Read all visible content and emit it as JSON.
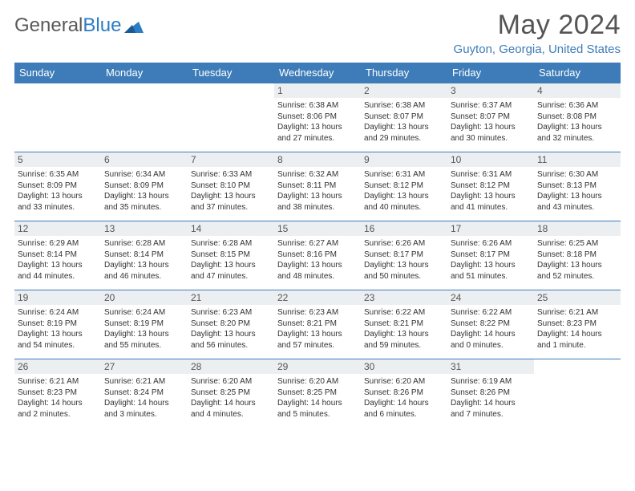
{
  "logo": {
    "text1": "General",
    "text2": "Blue",
    "accent_color": "#2b7dc4"
  },
  "title": "May 2024",
  "location": "Guyton, Georgia, United States",
  "colors": {
    "header_bg": "#3d7cb8",
    "header_text": "#ffffff",
    "daynum_bg": "#eceff1",
    "border": "#3d7cb8",
    "title_color": "#555555",
    "location_color": "#3d7cb8"
  },
  "weekdays": [
    "Sunday",
    "Monday",
    "Tuesday",
    "Wednesday",
    "Thursday",
    "Friday",
    "Saturday"
  ],
  "weeks": [
    [
      null,
      null,
      null,
      {
        "n": "1",
        "sr": "Sunrise: 6:38 AM",
        "ss": "Sunset: 8:06 PM",
        "dl": "Daylight: 13 hours and 27 minutes."
      },
      {
        "n": "2",
        "sr": "Sunrise: 6:38 AM",
        "ss": "Sunset: 8:07 PM",
        "dl": "Daylight: 13 hours and 29 minutes."
      },
      {
        "n": "3",
        "sr": "Sunrise: 6:37 AM",
        "ss": "Sunset: 8:07 PM",
        "dl": "Daylight: 13 hours and 30 minutes."
      },
      {
        "n": "4",
        "sr": "Sunrise: 6:36 AM",
        "ss": "Sunset: 8:08 PM",
        "dl": "Daylight: 13 hours and 32 minutes."
      }
    ],
    [
      {
        "n": "5",
        "sr": "Sunrise: 6:35 AM",
        "ss": "Sunset: 8:09 PM",
        "dl": "Daylight: 13 hours and 33 minutes."
      },
      {
        "n": "6",
        "sr": "Sunrise: 6:34 AM",
        "ss": "Sunset: 8:09 PM",
        "dl": "Daylight: 13 hours and 35 minutes."
      },
      {
        "n": "7",
        "sr": "Sunrise: 6:33 AM",
        "ss": "Sunset: 8:10 PM",
        "dl": "Daylight: 13 hours and 37 minutes."
      },
      {
        "n": "8",
        "sr": "Sunrise: 6:32 AM",
        "ss": "Sunset: 8:11 PM",
        "dl": "Daylight: 13 hours and 38 minutes."
      },
      {
        "n": "9",
        "sr": "Sunrise: 6:31 AM",
        "ss": "Sunset: 8:12 PM",
        "dl": "Daylight: 13 hours and 40 minutes."
      },
      {
        "n": "10",
        "sr": "Sunrise: 6:31 AM",
        "ss": "Sunset: 8:12 PM",
        "dl": "Daylight: 13 hours and 41 minutes."
      },
      {
        "n": "11",
        "sr": "Sunrise: 6:30 AM",
        "ss": "Sunset: 8:13 PM",
        "dl": "Daylight: 13 hours and 43 minutes."
      }
    ],
    [
      {
        "n": "12",
        "sr": "Sunrise: 6:29 AM",
        "ss": "Sunset: 8:14 PM",
        "dl": "Daylight: 13 hours and 44 minutes."
      },
      {
        "n": "13",
        "sr": "Sunrise: 6:28 AM",
        "ss": "Sunset: 8:14 PM",
        "dl": "Daylight: 13 hours and 46 minutes."
      },
      {
        "n": "14",
        "sr": "Sunrise: 6:28 AM",
        "ss": "Sunset: 8:15 PM",
        "dl": "Daylight: 13 hours and 47 minutes."
      },
      {
        "n": "15",
        "sr": "Sunrise: 6:27 AM",
        "ss": "Sunset: 8:16 PM",
        "dl": "Daylight: 13 hours and 48 minutes."
      },
      {
        "n": "16",
        "sr": "Sunrise: 6:26 AM",
        "ss": "Sunset: 8:17 PM",
        "dl": "Daylight: 13 hours and 50 minutes."
      },
      {
        "n": "17",
        "sr": "Sunrise: 6:26 AM",
        "ss": "Sunset: 8:17 PM",
        "dl": "Daylight: 13 hours and 51 minutes."
      },
      {
        "n": "18",
        "sr": "Sunrise: 6:25 AM",
        "ss": "Sunset: 8:18 PM",
        "dl": "Daylight: 13 hours and 52 minutes."
      }
    ],
    [
      {
        "n": "19",
        "sr": "Sunrise: 6:24 AM",
        "ss": "Sunset: 8:19 PM",
        "dl": "Daylight: 13 hours and 54 minutes."
      },
      {
        "n": "20",
        "sr": "Sunrise: 6:24 AM",
        "ss": "Sunset: 8:19 PM",
        "dl": "Daylight: 13 hours and 55 minutes."
      },
      {
        "n": "21",
        "sr": "Sunrise: 6:23 AM",
        "ss": "Sunset: 8:20 PM",
        "dl": "Daylight: 13 hours and 56 minutes."
      },
      {
        "n": "22",
        "sr": "Sunrise: 6:23 AM",
        "ss": "Sunset: 8:21 PM",
        "dl": "Daylight: 13 hours and 57 minutes."
      },
      {
        "n": "23",
        "sr": "Sunrise: 6:22 AM",
        "ss": "Sunset: 8:21 PM",
        "dl": "Daylight: 13 hours and 59 minutes."
      },
      {
        "n": "24",
        "sr": "Sunrise: 6:22 AM",
        "ss": "Sunset: 8:22 PM",
        "dl": "Daylight: 14 hours and 0 minutes."
      },
      {
        "n": "25",
        "sr": "Sunrise: 6:21 AM",
        "ss": "Sunset: 8:23 PM",
        "dl": "Daylight: 14 hours and 1 minute."
      }
    ],
    [
      {
        "n": "26",
        "sr": "Sunrise: 6:21 AM",
        "ss": "Sunset: 8:23 PM",
        "dl": "Daylight: 14 hours and 2 minutes."
      },
      {
        "n": "27",
        "sr": "Sunrise: 6:21 AM",
        "ss": "Sunset: 8:24 PM",
        "dl": "Daylight: 14 hours and 3 minutes."
      },
      {
        "n": "28",
        "sr": "Sunrise: 6:20 AM",
        "ss": "Sunset: 8:25 PM",
        "dl": "Daylight: 14 hours and 4 minutes."
      },
      {
        "n": "29",
        "sr": "Sunrise: 6:20 AM",
        "ss": "Sunset: 8:25 PM",
        "dl": "Daylight: 14 hours and 5 minutes."
      },
      {
        "n": "30",
        "sr": "Sunrise: 6:20 AM",
        "ss": "Sunset: 8:26 PM",
        "dl": "Daylight: 14 hours and 6 minutes."
      },
      {
        "n": "31",
        "sr": "Sunrise: 6:19 AM",
        "ss": "Sunset: 8:26 PM",
        "dl": "Daylight: 14 hours and 7 minutes."
      },
      null
    ]
  ]
}
